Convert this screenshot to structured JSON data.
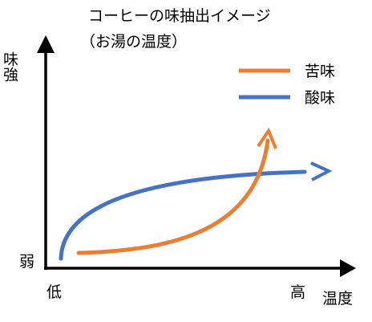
{
  "title": "コーヒーの味抽出イメージ",
  "subtitle": "（お湯の温度）",
  "y_axis": {
    "label": "味強",
    "low": "弱"
  },
  "x_axis": {
    "label": "温度",
    "low": "低",
    "high": "高"
  },
  "legend": [
    {
      "name": "苦味",
      "color": "#ed7d31"
    },
    {
      "name": "酸味",
      "color": "#4472c4"
    }
  ],
  "colors": {
    "axis": "#000000",
    "bitterness": "#ed7d31",
    "acidity": "#4472c4"
  }
}
